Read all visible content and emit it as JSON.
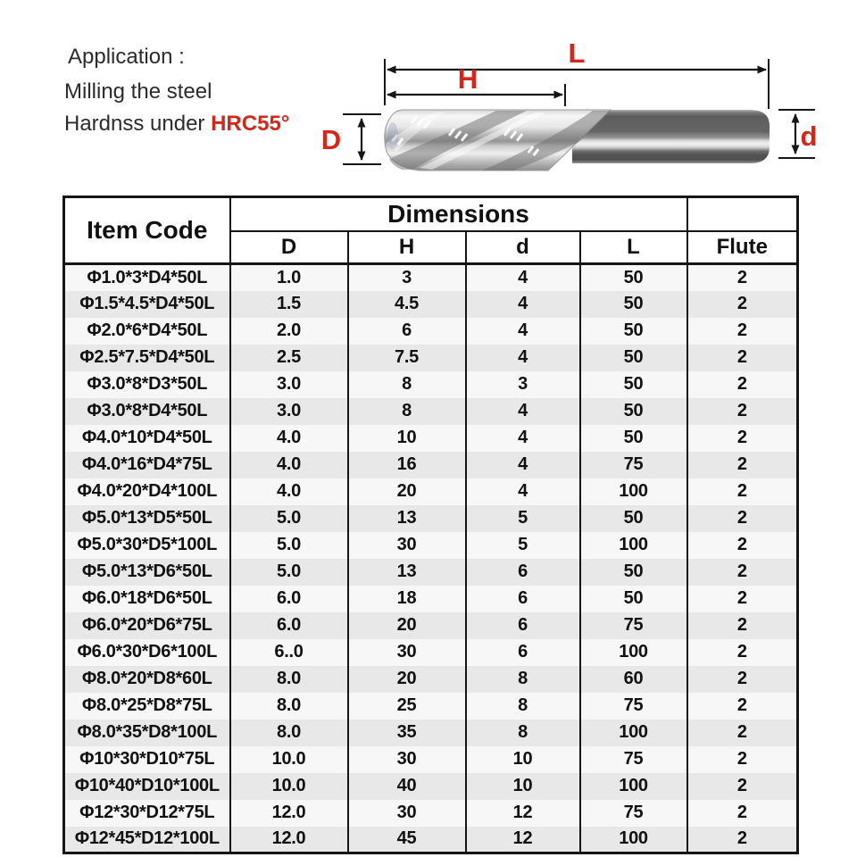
{
  "application": {
    "title": "Application :",
    "line1": "Milling the steel",
    "line2_prefix": "Hardnss under ",
    "line2_highlight": "HRC55°"
  },
  "diagram": {
    "label_overall_length": "L",
    "label_flute_length": "H",
    "label_cutting_diameter": "D",
    "label_shank_diameter": "d"
  },
  "colors": {
    "accent_red": "#d2281c",
    "table_border": "#151515",
    "row_odd": "#f7f7f7",
    "row_even": "#e8e8e8"
  },
  "table": {
    "header": {
      "item_code": "Item Code",
      "dimensions": "Dimensions",
      "sub_columns": [
        "D",
        "H",
        "d",
        "L"
      ],
      "flute": "Flute"
    },
    "rows": [
      [
        "Φ1.0*3*D4*50L",
        "1.0",
        "3",
        "4",
        "50",
        "2"
      ],
      [
        "Φ1.5*4.5*D4*50L",
        "1.5",
        "4.5",
        "4",
        "50",
        "2"
      ],
      [
        "Φ2.0*6*D4*50L",
        "2.0",
        "6",
        "4",
        "50",
        "2"
      ],
      [
        "Φ2.5*7.5*D4*50L",
        "2.5",
        "7.5",
        "4",
        "50",
        "2"
      ],
      [
        "Φ3.0*8*D3*50L",
        "3.0",
        "8",
        "3",
        "50",
        "2"
      ],
      [
        "Φ3.0*8*D4*50L",
        "3.0",
        "8",
        "4",
        "50",
        "2"
      ],
      [
        "Φ4.0*10*D4*50L",
        "4.0",
        "10",
        "4",
        "50",
        "2"
      ],
      [
        "Φ4.0*16*D4*75L",
        "4.0",
        "16",
        "4",
        "75",
        "2"
      ],
      [
        "Φ4.0*20*D4*100L",
        "4.0",
        "20",
        "4",
        "100",
        "2"
      ],
      [
        "Φ5.0*13*D5*50L",
        "5.0",
        "13",
        "5",
        "50",
        "2"
      ],
      [
        "Φ5.0*30*D5*100L",
        "5.0",
        "30",
        "5",
        "100",
        "2"
      ],
      [
        "Φ5.0*13*D6*50L",
        "5.0",
        "13",
        "6",
        "50",
        "2"
      ],
      [
        "Φ6.0*18*D6*50L",
        "6.0",
        "18",
        "6",
        "50",
        "2"
      ],
      [
        "Φ6.0*20*D6*75L",
        "6.0",
        "20",
        "6",
        "75",
        "2"
      ],
      [
        "Φ6.0*30*D6*100L",
        "6..0",
        "30",
        "6",
        "100",
        "2"
      ],
      [
        "Φ8.0*20*D8*60L",
        "8.0",
        "20",
        "8",
        "60",
        "2"
      ],
      [
        "Φ8.0*25*D8*75L",
        "8.0",
        "25",
        "8",
        "75",
        "2"
      ],
      [
        "Φ8.0*35*D8*100L",
        "8.0",
        "35",
        "8",
        "100",
        "2"
      ],
      [
        "Φ10*30*D10*75L",
        "10.0",
        "30",
        "10",
        "75",
        "2"
      ],
      [
        "Φ10*40*D10*100L",
        "10.0",
        "40",
        "10",
        "100",
        "2"
      ],
      [
        "Φ12*30*D12*75L",
        "12.0",
        "30",
        "12",
        "75",
        "2"
      ],
      [
        "Φ12*45*D12*100L",
        "12.0",
        "45",
        "12",
        "100",
        "2"
      ]
    ]
  }
}
